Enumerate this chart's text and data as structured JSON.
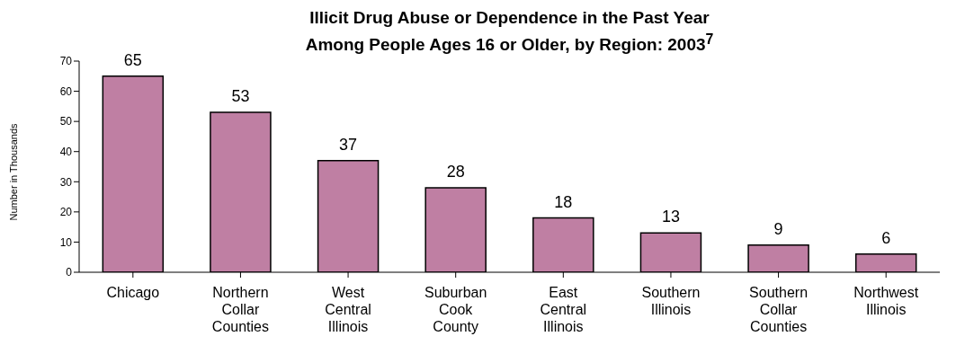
{
  "chart_data": {
    "type": "bar",
    "title": "Illicit Drug Abuse or Dependence in the Past Year\nAmong People Ages 16 or Older, by Region: 2003$^{7}$",
    "ylabel": "Number in Thousands",
    "categories": [
      "Chicago",
      "Northern Collar Counties",
      "West Central Illinois",
      "Suburban Cook County",
      "East Central Illinois",
      "Southern Illinois",
      "Southern Collar Counties",
      "Northwest Illinois"
    ],
    "values": [
      65,
      53,
      37,
      28,
      18,
      13,
      9,
      6
    ],
    "color": "#bf7fa3",
    "ylim": [
      0,
      70
    ],
    "yticks": [
      0,
      10,
      20,
      30,
      40,
      50,
      60,
      70
    ],
    "grid": false,
    "data_labels": true
  }
}
